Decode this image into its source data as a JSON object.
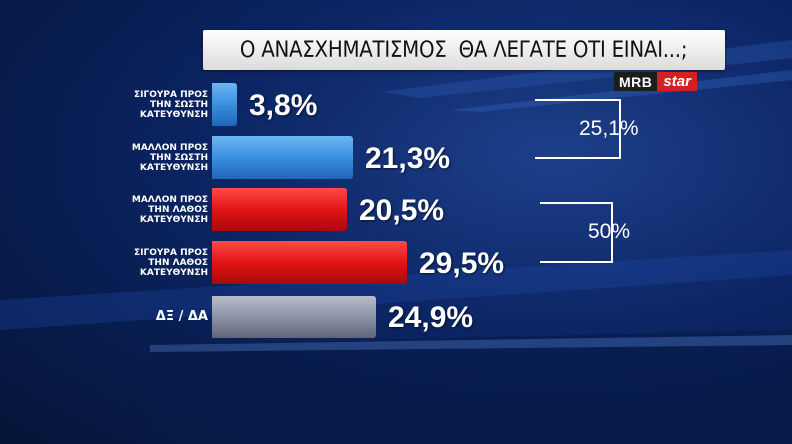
{
  "title": "Ο ΑΝΑΣΧΗΜΑΤΙΣΜΟΣ  ΘΑ ΛΕΓΑΤΕ ΟΤΙ ΕΙΝΑΙ...;",
  "logo": {
    "left": "MRB",
    "right": "star"
  },
  "colors": {
    "blue": "#3a8fe0",
    "red": "#e31414",
    "grey": "#8d93a6",
    "background": "#0b2462"
  },
  "chart_data": {
    "type": "bar",
    "orientation": "horizontal",
    "title": "Ο ΑΝΑΣΧΗΜΑΤΙΣΜΟΣ  ΘΑ ΛΕΓΑΤΕ ΟΤΙ ΕΙΝΑΙ...;",
    "categories": [
      "ΣΙΓΟΥΡΑ ΠΡΟΣ\nΤΗΝ ΣΩΣΤΗ\nΚΑΤΕΥΘΥΝΣΗ",
      "ΜΑΛΛΟΝ ΠΡΟΣ\nΤΗΝ ΣΩΣΤΗ\nΚΑΤΕΥΘΥΝΣΗ",
      "ΜΑΛΛΟΝ ΠΡΟΣ\nΤΗΝ ΛΑΘΟΣ\nΚΑΤΕΥΘΥΝΣΗ",
      "ΣΙΓΟΥΡΑ ΠΡΟΣ\nΤΗΝ ΛΑΘΟΣ\nΚΑΤΕΥΘΥΝΣΗ",
      "ΔΞ / ΔΑ"
    ],
    "values": [
      3.8,
      21.3,
      20.5,
      29.5,
      24.9
    ],
    "value_labels": [
      "3,8%",
      "21,3%",
      "20,5%",
      "29,5%",
      "24,9%"
    ],
    "bar_colors": [
      "blue",
      "blue",
      "red",
      "red",
      "grey"
    ],
    "groups": [
      {
        "label": "25,1%",
        "value": 25.1,
        "members": [
          0,
          1
        ]
      },
      {
        "label": "50%",
        "value": 50,
        "members": [
          2,
          3
        ]
      }
    ],
    "grid": false,
    "legend": "none"
  }
}
